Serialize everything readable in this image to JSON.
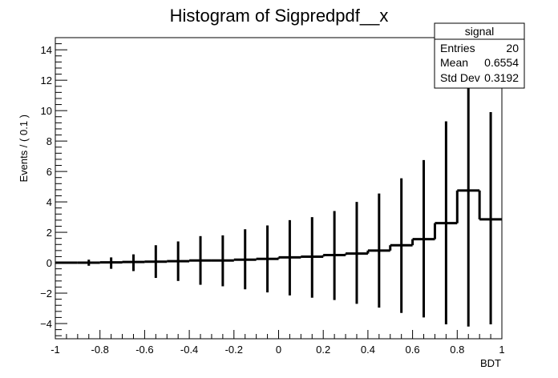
{
  "chart_data": {
    "type": "bar",
    "title": "Histogram of Sigpredpdf__x",
    "xlabel": "BDT",
    "ylabel": "Events / ( 0.1 )",
    "xlim": [
      -1,
      1
    ],
    "ylim": [
      -5,
      14.8
    ],
    "x_ticks": [
      "-1",
      "-0.8",
      "-0.6",
      "-0.4",
      "-0.2",
      "0",
      "0.2",
      "0.4",
      "0.6",
      "0.8",
      "1"
    ],
    "y_ticks": [
      "-4",
      "-2",
      "0",
      "2",
      "4",
      "6",
      "8",
      "10",
      "12",
      "14"
    ],
    "grid": false,
    "bins": [
      {
        "low": -1.0,
        "high": -0.9,
        "value": 0.0,
        "err_low": 0.0,
        "err_high": 0.0
      },
      {
        "low": -0.9,
        "high": -0.8,
        "value": 0.0,
        "err_low": -0.2,
        "err_high": 0.2
      },
      {
        "low": -0.8,
        "high": -0.7,
        "value": 0.02,
        "err_low": -0.4,
        "err_high": 0.35
      },
      {
        "low": -0.7,
        "high": -0.6,
        "value": 0.05,
        "err_low": -0.55,
        "err_high": 0.55
      },
      {
        "low": -0.6,
        "high": -0.5,
        "value": 0.07,
        "err_low": -1.0,
        "err_high": 1.15
      },
      {
        "low": -0.5,
        "high": -0.4,
        "value": 0.1,
        "err_low": -1.2,
        "err_high": 1.4
      },
      {
        "low": -0.4,
        "high": -0.3,
        "value": 0.15,
        "err_low": -1.45,
        "err_high": 1.75
      },
      {
        "low": -0.3,
        "high": -0.2,
        "value": 0.15,
        "err_low": -1.55,
        "err_high": 1.8
      },
      {
        "low": -0.2,
        "high": -0.1,
        "value": 0.2,
        "err_low": -1.75,
        "err_high": 2.2
      },
      {
        "low": -0.1,
        "high": 0.0,
        "value": 0.25,
        "err_low": -1.95,
        "err_high": 2.45
      },
      {
        "low": 0.0,
        "high": 0.1,
        "value": 0.35,
        "err_low": -2.15,
        "err_high": 2.8
      },
      {
        "low": 0.1,
        "high": 0.2,
        "value": 0.4,
        "err_low": -2.3,
        "err_high": 3.0
      },
      {
        "low": 0.2,
        "high": 0.3,
        "value": 0.5,
        "err_low": -2.45,
        "err_high": 3.4
      },
      {
        "low": 0.3,
        "high": 0.4,
        "value": 0.6,
        "err_low": -2.7,
        "err_high": 4.0
      },
      {
        "low": 0.4,
        "high": 0.5,
        "value": 0.8,
        "err_low": -2.95,
        "err_high": 4.55
      },
      {
        "low": 0.5,
        "high": 0.6,
        "value": 1.15,
        "err_low": -3.3,
        "err_high": 5.55
      },
      {
        "low": 0.6,
        "high": 0.7,
        "value": 1.55,
        "err_low": -3.6,
        "err_high": 6.75
      },
      {
        "low": 0.7,
        "high": 0.8,
        "value": 2.6,
        "err_low": -4.05,
        "err_high": 9.3
      },
      {
        "low": 0.8,
        "high": 0.9,
        "value": 4.75,
        "err_low": -4.2,
        "err_high": 12.0
      },
      {
        "low": 0.9,
        "high": 1.0,
        "value": 2.85,
        "err_low": -4.05,
        "err_high": 9.9
      }
    ]
  },
  "stats_box": {
    "title": "signal",
    "rows": [
      {
        "label": "Entries",
        "value": "20"
      },
      {
        "label": "Mean",
        "value": "0.6554"
      },
      {
        "label": "Std Dev",
        "value": "0.3192"
      }
    ]
  }
}
